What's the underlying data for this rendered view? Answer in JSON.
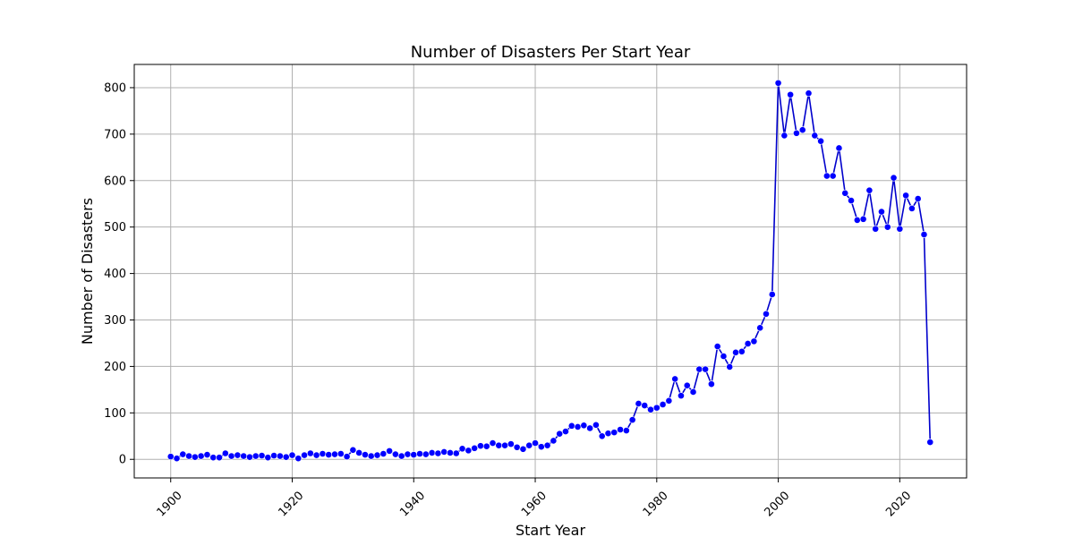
{
  "chart_data": {
    "type": "line",
    "title": "Number of Disasters Per Start Year",
    "xlabel": "Start Year",
    "ylabel": "Number of Disasters",
    "xlim": [
      1894,
      2031
    ],
    "ylim": [
      -40,
      850
    ],
    "x_ticks": [
      1900,
      1920,
      1940,
      1960,
      1980,
      2000,
      2020
    ],
    "y_ticks": [
      0,
      100,
      200,
      300,
      400,
      500,
      600,
      700,
      800
    ],
    "grid": true,
    "line_color": "#0000cc",
    "marker_color": "#0000ff",
    "series": [
      {
        "x": [
          1900,
          1901,
          1902,
          1903,
          1904,
          1905,
          1906,
          1907,
          1908,
          1909,
          1910,
          1911,
          1912,
          1913,
          1914,
          1915,
          1916,
          1917,
          1918,
          1919,
          1920,
          1921,
          1922,
          1923,
          1924,
          1925,
          1926,
          1927,
          1928,
          1929,
          1930,
          1931,
          1932,
          1933,
          1934,
          1935,
          1936,
          1937,
          1938,
          1939,
          1940,
          1941,
          1942,
          1943,
          1944,
          1945,
          1946,
          1947,
          1948,
          1949,
          1950,
          1951,
          1952,
          1953,
          1954,
          1955,
          1956,
          1957,
          1958,
          1959,
          1960,
          1961,
          1962,
          1963,
          1964,
          1965,
          1966,
          1967,
          1968,
          1969,
          1970,
          1971,
          1972,
          1973,
          1974,
          1975,
          1976,
          1977,
          1978,
          1979,
          1980,
          1981,
          1982,
          1983,
          1984,
          1985,
          1986,
          1987,
          1988,
          1989,
          1990,
          1991,
          1992,
          1993,
          1994,
          1995,
          1996,
          1997,
          1998,
          1999,
          2000,
          2001,
          2002,
          2003,
          2004,
          2005,
          2006,
          2007,
          2008,
          2009,
          2010,
          2011,
          2012,
          2013,
          2014,
          2015,
          2016,
          2017,
          2018,
          2019,
          2020,
          2021,
          2022,
          2023,
          2024,
          2025
        ],
        "values": [
          6,
          2,
          11,
          7,
          5,
          7,
          10,
          4,
          4,
          13,
          7,
          9,
          7,
          5,
          7,
          8,
          4,
          8,
          7,
          5,
          9,
          2,
          9,
          13,
          9,
          12,
          10,
          11,
          12,
          6,
          20,
          14,
          10,
          7,
          9,
          12,
          18,
          11,
          7,
          11,
          10,
          12,
          11,
          14,
          13,
          16,
          14,
          13,
          23,
          19,
          24,
          29,
          28,
          35,
          30,
          30,
          33,
          26,
          22,
          30,
          35,
          27,
          30,
          40,
          55,
          60,
          72,
          70,
          73,
          67,
          74,
          50,
          56,
          58,
          64,
          62,
          85,
          120,
          116,
          107,
          111,
          118,
          126,
          173,
          137,
          159,
          145,
          194,
          194,
          162,
          243,
          222,
          199,
          230,
          232,
          249,
          254,
          283,
          313,
          355,
          810,
          697,
          785,
          702,
          709,
          788,
          697,
          685,
          610,
          610,
          670,
          573,
          557,
          515,
          517,
          579,
          496,
          533,
          500,
          606,
          496,
          568,
          540,
          561,
          484,
          37
        ]
      }
    ]
  }
}
